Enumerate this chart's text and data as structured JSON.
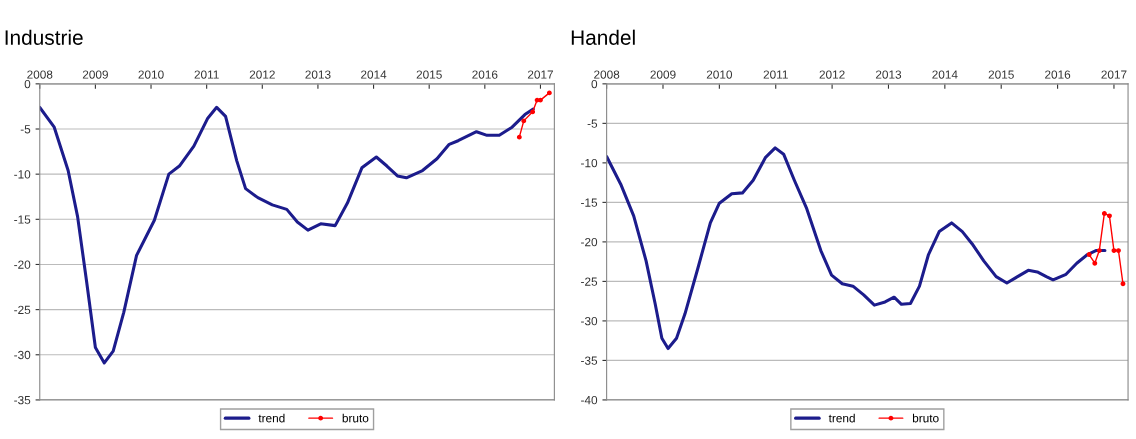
{
  "chart_data": [
    {
      "type": "line",
      "title": "Industrie",
      "xlim": [
        2008,
        2017.25
      ],
      "xticks": [
        2008,
        2009,
        2010,
        2011,
        2012,
        2013,
        2014,
        2015,
        2016,
        2017
      ],
      "ylim": [
        -35,
        0
      ],
      "yticks": [
        0,
        -5,
        -10,
        -15,
        -20,
        -25,
        -30,
        -35
      ],
      "grid": "y",
      "legend": "bottom",
      "series": [
        {
          "name": "trend",
          "color": "#1c1c8c",
          "marker": "none",
          "x": [
            2008.0,
            2008.26,
            2008.51,
            2008.68,
            2008.84,
            2009.0,
            2009.16,
            2009.32,
            2009.51,
            2009.74,
            2010.06,
            2010.32,
            2010.51,
            2010.77,
            2011.02,
            2011.18,
            2011.34,
            2011.54,
            2011.7,
            2011.92,
            2012.18,
            2012.44,
            2012.63,
            2012.82,
            2013.05,
            2013.31,
            2013.53,
            2013.79,
            2014.05,
            2014.24,
            2014.43,
            2014.59,
            2014.88,
            2015.14,
            2015.36,
            2015.52,
            2015.85,
            2016.04,
            2016.26,
            2016.49,
            2016.72,
            2016.87
          ],
          "values": [
            -2.6,
            -4.8,
            -9.6,
            -14.7,
            -21.8,
            -29.2,
            -30.9,
            -29.6,
            -25.3,
            -19.0,
            -15.1,
            -10.0,
            -9.1,
            -6.9,
            -3.8,
            -2.6,
            -3.6,
            -8.5,
            -11.6,
            -12.6,
            -13.4,
            -13.9,
            -15.3,
            -16.2,
            -15.5,
            -15.7,
            -13.2,
            -9.3,
            -8.1,
            -9.1,
            -10.2,
            -10.4,
            -9.6,
            -8.3,
            -6.7,
            -6.3,
            -5.3,
            -5.7,
            -5.7,
            -4.8,
            -3.4,
            -2.8
          ]
        },
        {
          "name": "bruto",
          "color": "#ff0000",
          "marker": "circle",
          "x": [
            2016.62,
            2016.7,
            2016.86,
            2016.94,
            2017.0,
            2017.16
          ],
          "values": [
            -5.9,
            -4.1,
            -3.1,
            -1.8,
            -1.8,
            -1.0
          ]
        }
      ]
    },
    {
      "type": "line",
      "title": "Handel",
      "xlim": [
        2008,
        2017.25
      ],
      "xticks": [
        2008,
        2009,
        2010,
        2011,
        2012,
        2013,
        2014,
        2015,
        2016,
        2017
      ],
      "ylim": [
        -40,
        0
      ],
      "yticks": [
        0,
        -5,
        -10,
        -15,
        -20,
        -25,
        -30,
        -35,
        -40
      ],
      "grid": "y",
      "legend": "bottom",
      "series": [
        {
          "name": "trend",
          "color": "#1c1c8c",
          "marker": "none",
          "x": [
            2008.0,
            2008.25,
            2008.48,
            2008.7,
            2008.86,
            2008.98,
            2009.09,
            2009.24,
            2009.39,
            2009.62,
            2009.84,
            2010.0,
            2010.22,
            2010.41,
            2010.6,
            2010.82,
            2010.99,
            2011.14,
            2011.33,
            2011.55,
            2011.8,
            2011.99,
            2012.18,
            2012.37,
            2012.56,
            2012.75,
            2012.94,
            2013.1,
            2013.23,
            2013.39,
            2013.55,
            2013.71,
            2013.9,
            2014.12,
            2014.31,
            2014.5,
            2014.69,
            2014.91,
            2015.1,
            2015.29,
            2015.48,
            2015.64,
            2015.8,
            2015.92,
            2016.15,
            2016.34,
            2016.53,
            2016.68,
            2016.84
          ],
          "values": [
            -9.2,
            -12.7,
            -16.7,
            -22.4,
            -27.8,
            -32.2,
            -33.5,
            -32.2,
            -29.1,
            -23.3,
            -17.6,
            -15.1,
            -13.9,
            -13.8,
            -12.2,
            -9.3,
            -8.1,
            -8.9,
            -12.2,
            -15.8,
            -21.1,
            -24.2,
            -25.3,
            -25.6,
            -26.7,
            -28.0,
            -27.6,
            -27.0,
            -27.9,
            -27.8,
            -25.6,
            -21.6,
            -18.7,
            -17.6,
            -18.7,
            -20.4,
            -22.4,
            -24.4,
            -25.2,
            -24.4,
            -23.6,
            -23.8,
            -24.4,
            -24.8,
            -24.1,
            -22.7,
            -21.6,
            -21.1,
            -21.1
          ]
        },
        {
          "name": "bruto",
          "color": "#ff0000",
          "marker": "circle",
          "x": [
            2016.56,
            2016.66,
            2016.74,
            2016.83,
            2016.92,
            2017.0,
            2017.08,
            2017.16
          ],
          "values": [
            -21.6,
            -22.7,
            -21.1,
            -16.4,
            -16.7,
            -21.1,
            -21.1,
            -25.3
          ]
        }
      ]
    }
  ]
}
